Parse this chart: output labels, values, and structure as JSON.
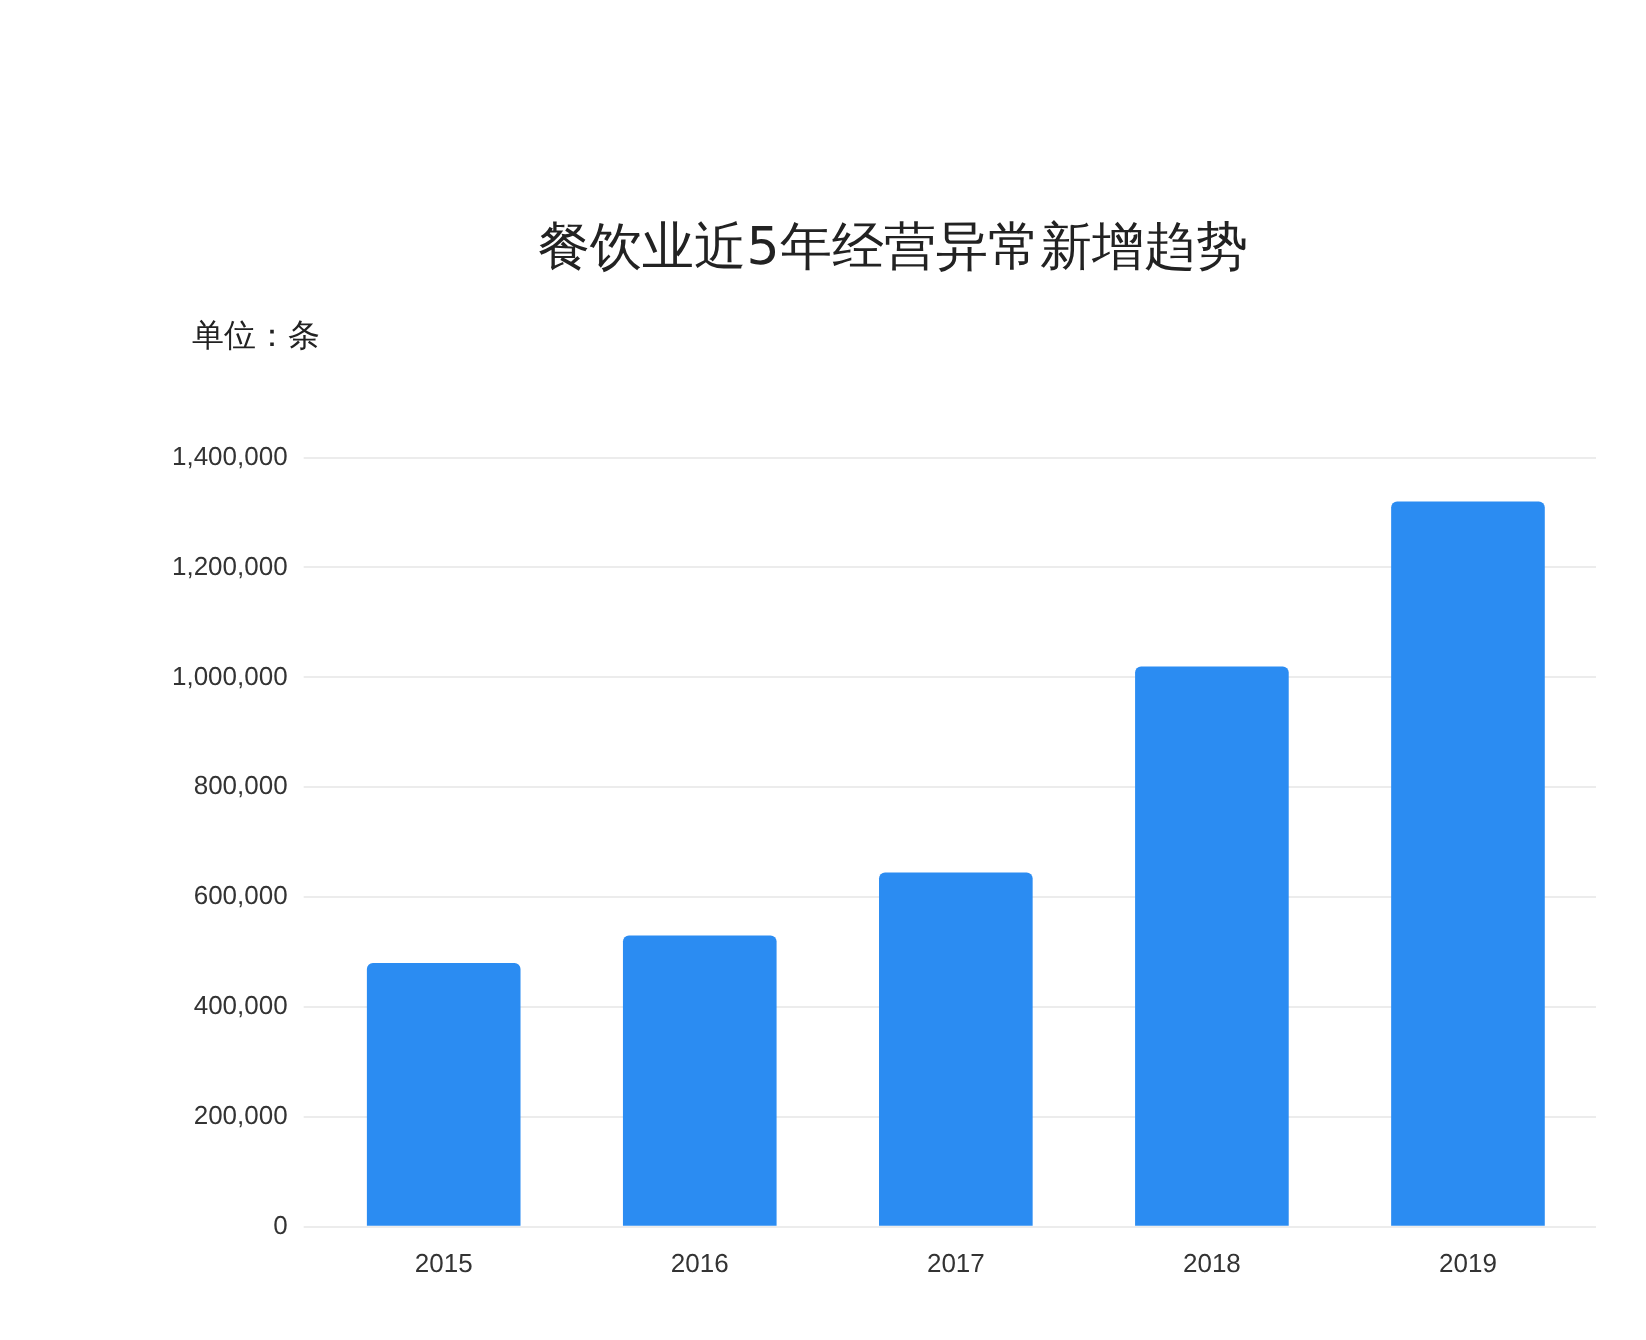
{
  "chart_data": {
    "type": "bar",
    "title": "餐饮业近5年经营异常新增趋势",
    "ylabel": "单位：条",
    "categories": [
      "2015",
      "2016",
      "2017",
      "2018",
      "2019"
    ],
    "values": [
      480000,
      530000,
      645000,
      1020000,
      1320000
    ],
    "color": "#2b8cf2",
    "ylim": [
      0,
      1400000
    ],
    "yticks": [
      0,
      {
        "value": 200000,
        "label": "200,000"
      },
      {
        "value": 400000,
        "label": "400,000"
      },
      {
        "value": 600000,
        "label": "600,000"
      },
      {
        "value": 800000,
        "label": "800,000"
      },
      {
        "value": 1000000,
        "label": "1,000,000"
      },
      {
        "value": 1200000,
        "label": "1,200,000"
      },
      {
        "value": 1400000,
        "label": "1,400,000"
      }
    ],
    "grid": "y",
    "legend": false
  }
}
